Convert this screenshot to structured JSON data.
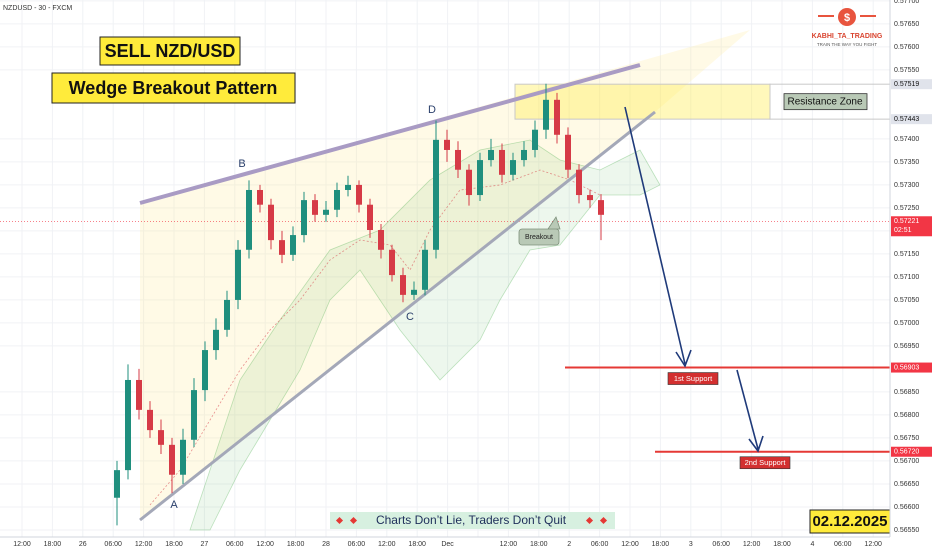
{
  "chart_data": {
    "type": "candlestick",
    "symbol": "NZDUSD - 30 - FXCM",
    "title": "SELL NZD/USD",
    "subtitle": "Wedge Breakout Pattern",
    "brand": "KABHI_TA_TRADING",
    "brand_tagline": "TRAIN THE WAY YOU FIGHT",
    "wave_labels": [
      "A",
      "B",
      "C",
      "D"
    ],
    "breakout_label": "Breakout",
    "resistance_label": "Resistance Zone",
    "support_labels": [
      "1st Support",
      "2nd Support"
    ],
    "footer": "Charts Don’t Lie, Traders Don’t Quit",
    "date": "02.12.2025",
    "up_color": "#1f8f7e",
    "down_color": "#d63a46",
    "open": [
      0.5662,
      0.5668,
      0.56876,
      0.56811,
      0.56767,
      0.56735,
      0.5667,
      0.56746,
      0.56854,
      0.56941,
      0.56985,
      0.5705,
      0.57159,
      0.57289,
      0.57257,
      0.5718,
      0.57148,
      0.57191,
      0.57267,
      0.57235,
      0.57246,
      0.57289,
      0.573,
      0.57257,
      0.57202,
      0.57159,
      0.57104,
      0.57061,
      0.57072,
      0.57159,
      0.57398,
      0.57376,
      0.57333,
      0.57278,
      0.57354,
      0.57376,
      0.57322,
      0.57354,
      0.57376,
      0.5742,
      0.57485,
      0.57409,
      0.57333,
      0.57278,
      0.57267
    ],
    "high": [
      0.567,
      0.5691,
      0.569,
      0.5683,
      0.5679,
      0.5675,
      0.5677,
      0.5688,
      0.5696,
      0.5701,
      0.5707,
      0.5718,
      0.5731,
      0.573,
      0.5727,
      0.572,
      0.5721,
      0.57285,
      0.5728,
      0.57265,
      0.57305,
      0.5732,
      0.5731,
      0.5727,
      0.57215,
      0.5717,
      0.5712,
      0.5709,
      0.5718,
      0.5744,
      0.5742,
      0.57395,
      0.57345,
      0.5737,
      0.574,
      0.5739,
      0.5737,
      0.57395,
      0.5744,
      0.5752,
      0.575,
      0.57425,
      0.57345,
      0.5729,
      0.5728
    ],
    "low": [
      0.5656,
      0.5666,
      0.5679,
      0.5675,
      0.56715,
      0.5663,
      0.5665,
      0.5673,
      0.5683,
      0.5692,
      0.5697,
      0.5703,
      0.5714,
      0.5724,
      0.5716,
      0.5713,
      0.57135,
      0.57175,
      0.5722,
      0.5722,
      0.5723,
      0.57275,
      0.5724,
      0.57185,
      0.5714,
      0.5709,
      0.57045,
      0.5705,
      0.5706,
      0.5714,
      0.5735,
      0.57315,
      0.57255,
      0.57265,
      0.5734,
      0.57305,
      0.5731,
      0.5734,
      0.5736,
      0.574,
      0.5739,
      0.57315,
      0.5726,
      0.5725,
      0.5718
    ],
    "close": [
      0.5668,
      0.56876,
      0.56811,
      0.56767,
      0.56735,
      0.5667,
      0.56746,
      0.56854,
      0.56941,
      0.56985,
      0.5705,
      0.57159,
      0.57289,
      0.57257,
      0.5718,
      0.57148,
      0.57191,
      0.57267,
      0.57235,
      0.57246,
      0.57289,
      0.573,
      0.57257,
      0.57202,
      0.57159,
      0.57104,
      0.57061,
      0.57072,
      0.57159,
      0.57398,
      0.57376,
      0.57333,
      0.57278,
      0.57354,
      0.57376,
      0.57322,
      0.57354,
      0.57376,
      0.5742,
      0.57485,
      0.57409,
      0.57333,
      0.57278,
      0.57267,
      0.57235
    ],
    "ylim": [
      0.56539,
      0.57702
    ],
    "yticks": [
      {
        "value": 0.5655,
        "label": "0.56550"
      },
      {
        "value": 0.566,
        "label": "0.56600"
      },
      {
        "value": 0.5665,
        "label": "0.56650"
      },
      {
        "value": 0.567,
        "label": "0.56700"
      },
      {
        "value": 0.5675,
        "label": "0.56750"
      },
      {
        "value": 0.568,
        "label": "0.56800"
      },
      {
        "value": 0.5685,
        "label": "0.56850"
      },
      {
        "value": 0.5695,
        "label": "0.56950"
      },
      {
        "value": 0.57,
        "label": "0.57000"
      },
      {
        "value": 0.5705,
        "label": "0.57050"
      },
      {
        "value": 0.571,
        "label": "0.57100"
      },
      {
        "value": 0.5715,
        "label": "0.57150"
      },
      {
        "value": 0.572,
        "label": "0.57200"
      },
      {
        "value": 0.5725,
        "label": "0.57250"
      },
      {
        "value": 0.573,
        "label": "0.57300"
      },
      {
        "value": 0.5735,
        "label": "0.57350"
      },
      {
        "value": 0.574,
        "label": "0.57400"
      },
      {
        "value": 0.5755,
        "label": "0.57550"
      },
      {
        "value": 0.576,
        "label": "0.57600"
      },
      {
        "value": 0.5765,
        "label": "0.57650"
      },
      {
        "value": 0.577,
        "label": "0.57700"
      }
    ],
    "price_labels": [
      {
        "value": 0.57519,
        "label": "0.57519",
        "color": "#e0e3eb"
      },
      {
        "value": 0.57443,
        "label": "0.57443",
        "color": "#e0e3eb"
      },
      {
        "value": 0.57221,
        "label": "0.57221",
        "color": "#f23645"
      },
      {
        "value": 0.56903,
        "label": "0.56903",
        "color": "#f23645"
      },
      {
        "value": 0.5672,
        "label": "0.56720",
        "color": "#f23645"
      }
    ],
    "countdown": "02:51",
    "time_labels": [
      "12:00",
      "18:00",
      "26",
      "06:00",
      "12:00",
      "18:00",
      "27",
      "06:00",
      "12:00",
      "18:00",
      "28",
      "06:00",
      "12:00",
      "18:00",
      "Dec",
      null,
      "12:00",
      "18:00",
      "2",
      "06:00",
      "12:00",
      "18:00",
      "3",
      "06:00",
      "12:00",
      "18:00",
      "4",
      "06:00",
      "12:00"
    ],
    "grid": true
  }
}
